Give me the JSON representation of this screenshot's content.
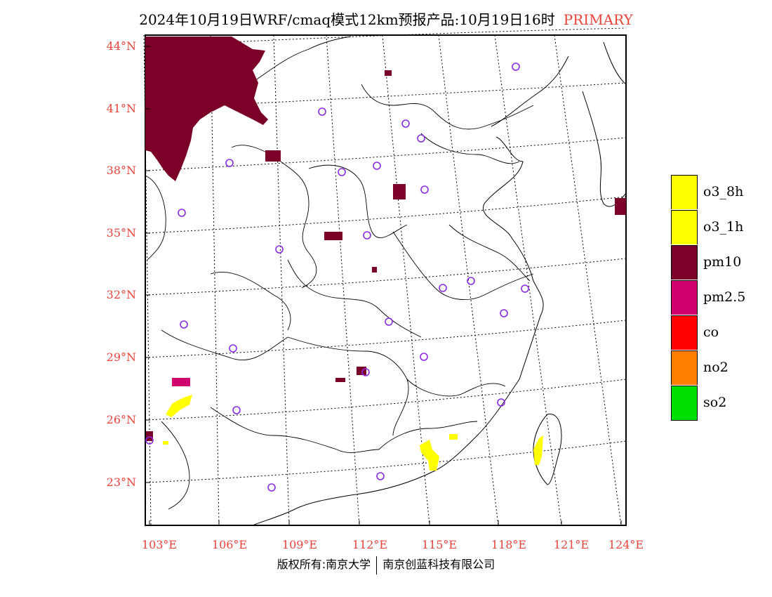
{
  "header": {
    "title": "2024年10月19日WRF/cmaq模式12km预报产品:10月19日16时",
    "tag": "PRIMARY"
  },
  "map": {
    "latitude_labels": [
      "44°N",
      "41°N",
      "38°N",
      "35°N",
      "32°N",
      "29°N",
      "26°N",
      "23°N"
    ],
    "longitude_labels": [
      "103°E",
      "106°E",
      "109°E",
      "112°E",
      "115°E",
      "118°E",
      "121°E",
      "124°E"
    ],
    "region_colors": {
      "pm10": "#7a0028",
      "pm2_5": "#d0006e",
      "o3": "#ffff00",
      "station_marker": "#8a2be2"
    }
  },
  "legend": {
    "items": [
      {
        "label": "o3_8h",
        "color": "#ffff00"
      },
      {
        "label": "o3_1h",
        "color": "#ffff00"
      },
      {
        "label": "pm10",
        "color": "#7a0028"
      },
      {
        "label": "pm2.5",
        "color": "#d0006e"
      },
      {
        "label": "co",
        "color": "#ff0000"
      },
      {
        "label": "no2",
        "color": "#ff8000"
      },
      {
        "label": "so2",
        "color": "#00e000"
      }
    ]
  },
  "footer": {
    "copyright": "版权所有:南京大学",
    "company": "南京创蓝科技有限公司"
  }
}
